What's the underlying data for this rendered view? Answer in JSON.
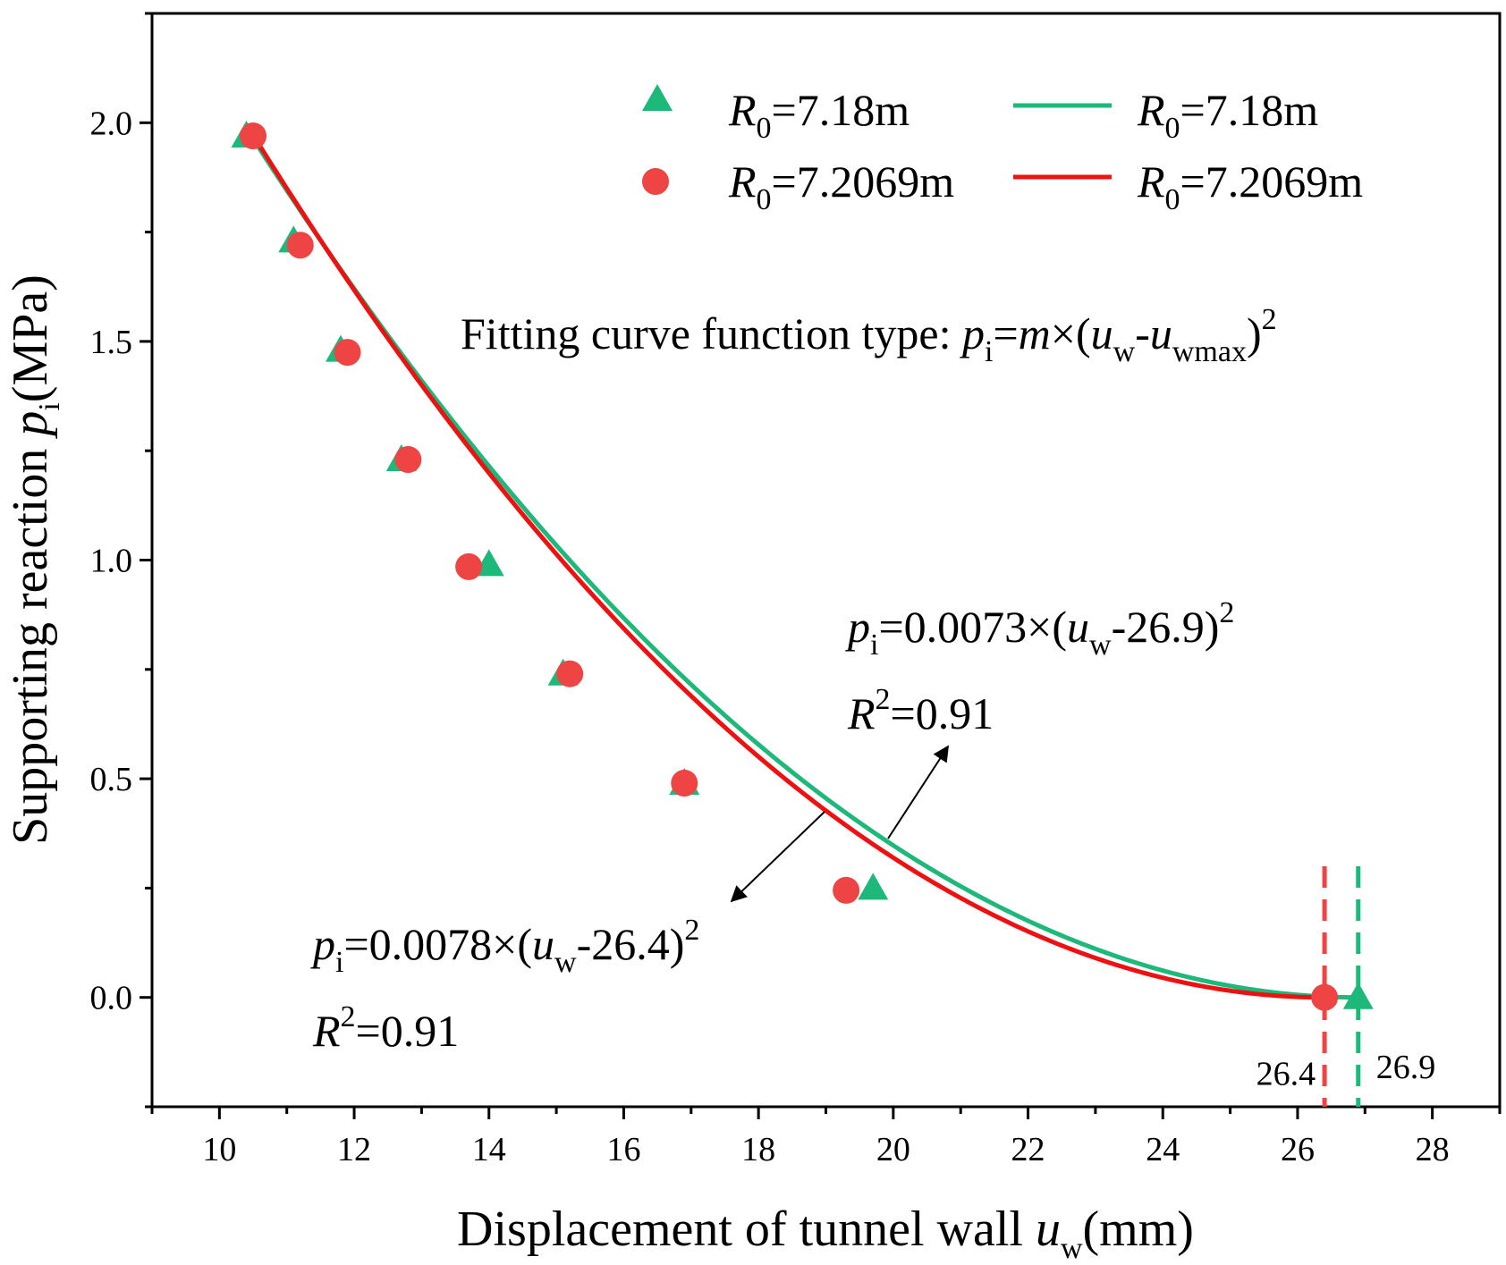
{
  "chart_data": {
    "type": "scatter",
    "title": "",
    "xlabel": {
      "main": "Displacement of tunnel wall ",
      "var": "u",
      "sub": "w",
      "unit": "(mm)"
    },
    "ylabel": {
      "main": "Supporting reaction ",
      "var": "p",
      "sub": "i",
      "unit": "(MPa)"
    },
    "xlim": [
      9,
      29
    ],
    "ylim": [
      -0.25,
      2.25
    ],
    "xticks": [
      10,
      12,
      14,
      16,
      18,
      20,
      22,
      24,
      26,
      28
    ],
    "yticks": [
      0.0,
      0.5,
      1.0,
      1.5,
      2.0
    ],
    "xtick_labels": [
      "10",
      "12",
      "14",
      "16",
      "18",
      "20",
      "22",
      "24",
      "26",
      "28"
    ],
    "ytick_labels": [
      "0.0",
      "0.5",
      "1.0",
      "1.5",
      "2.0"
    ],
    "grid": false,
    "legend_position": "top-right",
    "series": [
      {
        "name": "R0=7.18m",
        "kind": "scatter",
        "marker": "triangle",
        "color": "#1db87a",
        "x": [
          10.4,
          11.1,
          11.8,
          12.7,
          14.0,
          15.1,
          16.9,
          19.7,
          26.9
        ],
        "y": [
          1.97,
          1.73,
          1.48,
          1.23,
          0.99,
          0.74,
          0.49,
          0.25,
          0.0
        ]
      },
      {
        "name": "R0=7.2069m",
        "kind": "scatter",
        "marker": "circle",
        "color": "#ee4444",
        "x": [
          10.5,
          11.2,
          11.9,
          12.8,
          13.7,
          15.2,
          16.9,
          19.3,
          26.4
        ],
        "y": [
          1.97,
          1.72,
          1.475,
          1.23,
          0.985,
          0.74,
          0.49,
          0.245,
          0.0
        ]
      },
      {
        "name": "R0=7.18m",
        "kind": "line",
        "color": "#1db87a",
        "m": 0.0073,
        "uwmax": 26.9,
        "x_start": 10.45
      },
      {
        "name": "R0=7.2069m",
        "kind": "line",
        "color": "#ee1111",
        "m": 0.0078,
        "uwmax": 26.4,
        "x_start": 10.55
      }
    ],
    "vertical_markers": [
      {
        "x": 26.4,
        "label": "26.4",
        "color": "#ee4444"
      },
      {
        "x": 26.9,
        "label": "26.9",
        "color": "#1db87a"
      }
    ],
    "legend": {
      "scatter_entries": [
        {
          "var": "R",
          "sub": "0",
          "rest": "=7.18m"
        },
        {
          "var": "R",
          "sub": "0",
          "rest": "=7.2069m"
        }
      ],
      "line_entries": [
        {
          "var": "R",
          "sub": "0",
          "rest": "=7.18m"
        },
        {
          "var": "R",
          "sub": "0",
          "rest": "=7.2069m"
        }
      ]
    },
    "annotations": {
      "function_type": {
        "prefix": "Fitting curve function type: ",
        "p": "p",
        "p_sub": "i",
        "eq": "=",
        "m": "m",
        "times": "×(",
        "u1": "u",
        "u1_sub": "w",
        "dash": "-",
        "u2": "u",
        "u2_sub": "wmax",
        "close": ")",
        "sup": "2"
      },
      "green_fit": {
        "p": "p",
        "p_sub": "i",
        "coef": "=0.0073×(",
        "u": "u",
        "u_sub": "w",
        "rest": "-26.9)",
        "sup": "2",
        "r": "R",
        "r_sup": "2",
        "r_val": "=0.91"
      },
      "red_fit": {
        "p": "p",
        "p_sub": "i",
        "coef": "=0.0078×(",
        "u": "u",
        "u_sub": "w",
        "rest": "-26.4)",
        "sup": "2",
        "r": "R",
        "r_sup": "2",
        "r_val": "=0.91"
      }
    }
  }
}
